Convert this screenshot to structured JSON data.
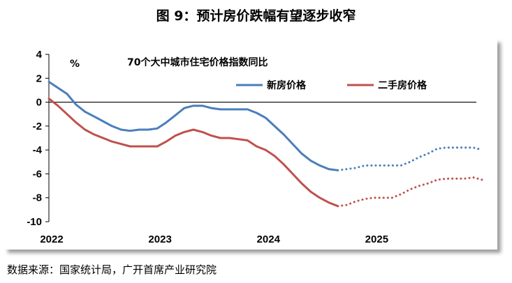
{
  "page": {
    "title": "图 9：预计房价跌幅有望逐步收窄",
    "source": "数据来源：国家统计局，广开首席产业研究院"
  },
  "chart_data": {
    "type": "line",
    "title": "70个大中城市住宅价格指数同比",
    "ylabel": "%",
    "ylim": [
      -10,
      4
    ],
    "yticks": [
      4,
      2,
      0,
      -2,
      -4,
      -6,
      -8,
      -10
    ],
    "xlim": [
      2022.0,
      2026.1
    ],
    "xticks": [
      2022,
      2023,
      2024,
      2025
    ],
    "xtick_labels": [
      "2022",
      "2023",
      "2024",
      "2025"
    ],
    "legend": {
      "position": "top-right"
    },
    "colors": {
      "new": "#4a7ebb",
      "second": "#c0504d",
      "zero_line": "#000000"
    },
    "series": [
      {
        "name": "新房价格",
        "color": "#4a7ebb",
        "actual_x": [
          2022.0,
          2022.083,
          2022.167,
          2022.25,
          2022.333,
          2022.417,
          2022.5,
          2022.583,
          2022.667,
          2022.75,
          2022.833,
          2022.917,
          2023.0,
          2023.083,
          2023.167,
          2023.25,
          2023.333,
          2023.417,
          2023.5,
          2023.583,
          2023.667,
          2023.75,
          2023.833,
          2023.917,
          2024.0,
          2024.083,
          2024.167,
          2024.25,
          2024.333,
          2024.417,
          2024.5,
          2024.583,
          2024.667
        ],
        "actual_y": [
          1.7,
          1.2,
          0.7,
          -0.2,
          -0.8,
          -1.2,
          -1.6,
          -2.0,
          -2.3,
          -2.4,
          -2.3,
          -2.3,
          -2.2,
          -1.7,
          -1.1,
          -0.5,
          -0.3,
          -0.3,
          -0.5,
          -0.6,
          -0.6,
          -0.6,
          -0.6,
          -0.9,
          -1.3,
          -2.0,
          -2.7,
          -3.5,
          -4.3,
          -4.9,
          -5.3,
          -5.6,
          -5.7
        ],
        "forecast_x": [
          2024.667,
          2024.75,
          2024.833,
          2024.917,
          2025.0,
          2025.083,
          2025.167,
          2025.25,
          2025.333,
          2025.417,
          2025.5,
          2025.583,
          2025.667,
          2025.75,
          2025.833,
          2025.917,
          2026.0
        ],
        "forecast_y": [
          -5.7,
          -5.6,
          -5.5,
          -5.3,
          -5.3,
          -5.3,
          -5.3,
          -5.3,
          -5.0,
          -4.6,
          -4.3,
          -3.9,
          -3.8,
          -3.8,
          -3.8,
          -3.8,
          -4.0
        ]
      },
      {
        "name": "二手房价格",
        "color": "#c0504d",
        "actual_x": [
          2022.0,
          2022.083,
          2022.167,
          2022.25,
          2022.333,
          2022.417,
          2022.5,
          2022.583,
          2022.667,
          2022.75,
          2022.833,
          2022.917,
          2023.0,
          2023.083,
          2023.167,
          2023.25,
          2023.333,
          2023.417,
          2023.5,
          2023.583,
          2023.667,
          2023.75,
          2023.833,
          2023.917,
          2024.0,
          2024.083,
          2024.167,
          2024.25,
          2024.333,
          2024.417,
          2024.5,
          2024.583,
          2024.667
        ],
        "actual_y": [
          0.3,
          -0.3,
          -1.0,
          -1.7,
          -2.3,
          -2.7,
          -3.0,
          -3.3,
          -3.5,
          -3.7,
          -3.7,
          -3.7,
          -3.7,
          -3.3,
          -2.8,
          -2.5,
          -2.3,
          -2.5,
          -2.8,
          -3.0,
          -3.0,
          -3.1,
          -3.2,
          -3.7,
          -4.0,
          -4.5,
          -5.2,
          -6.0,
          -6.8,
          -7.5,
          -8.0,
          -8.4,
          -8.7
        ],
        "forecast_x": [
          2024.667,
          2024.75,
          2024.833,
          2024.917,
          2025.0,
          2025.083,
          2025.167,
          2025.25,
          2025.333,
          2025.417,
          2025.5,
          2025.583,
          2025.667,
          2025.75,
          2025.833,
          2025.917,
          2026.0
        ],
        "forecast_y": [
          -8.7,
          -8.6,
          -8.3,
          -8.1,
          -8.0,
          -8.0,
          -8.0,
          -7.7,
          -7.3,
          -7.0,
          -6.8,
          -6.5,
          -6.4,
          -6.4,
          -6.4,
          -6.3,
          -6.5
        ]
      }
    ]
  }
}
